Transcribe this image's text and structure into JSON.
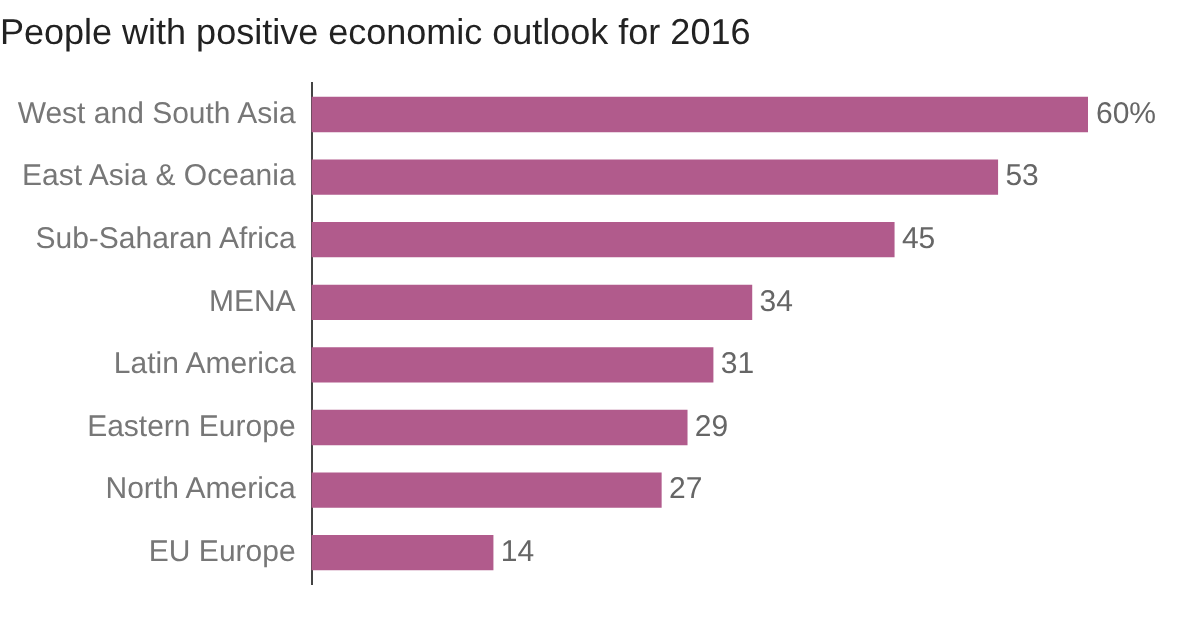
{
  "chart_data": {
    "type": "bar",
    "orientation": "horizontal",
    "title": "People with positive economic outlook for 2016",
    "categories": [
      "West and South Asia",
      "East Asia & Oceania",
      "Sub-Saharan Africa",
      "MENA",
      "Latin America",
      "Eastern Europe",
      "North America",
      "EU Europe"
    ],
    "values": [
      60,
      53,
      45,
      34,
      31,
      29,
      27,
      14
    ],
    "value_labels": [
      "60%",
      "53",
      "45",
      "34",
      "31",
      "29",
      "27",
      "14"
    ],
    "color": "#b15b8c",
    "legend": false
  }
}
